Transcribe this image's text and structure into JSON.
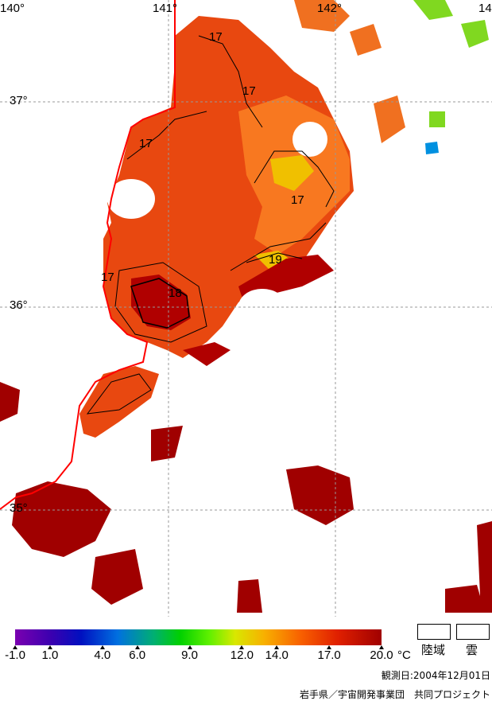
{
  "grid": {
    "lon_labels": [
      "140°",
      "141°",
      "142°",
      "14"
    ],
    "lat_labels": [
      "37°",
      "36°",
      "35°"
    ]
  },
  "contours": {
    "labels": [
      "17",
      "17",
      "17",
      "17",
      "17",
      "18",
      "19"
    ]
  },
  "legend": {
    "ticks": [
      "-1.0",
      "1.0",
      "4.0",
      "6.0",
      "9.0",
      "12.0",
      "14.0",
      "17.0",
      "20.0"
    ],
    "unit": "°C",
    "land_label": "陸域",
    "cloud_label": "雲",
    "land_color": "#ffffff",
    "cloud_color": "#ffffff"
  },
  "observation_date": "観測日:2004年12月01日",
  "credit": "岩手県／宇宙開発事業団　共同プロジェクト",
  "colors": {
    "coast": "#ff0000",
    "warm": "#e03000",
    "hot": "#a00000",
    "mid": "#f86000"
  }
}
